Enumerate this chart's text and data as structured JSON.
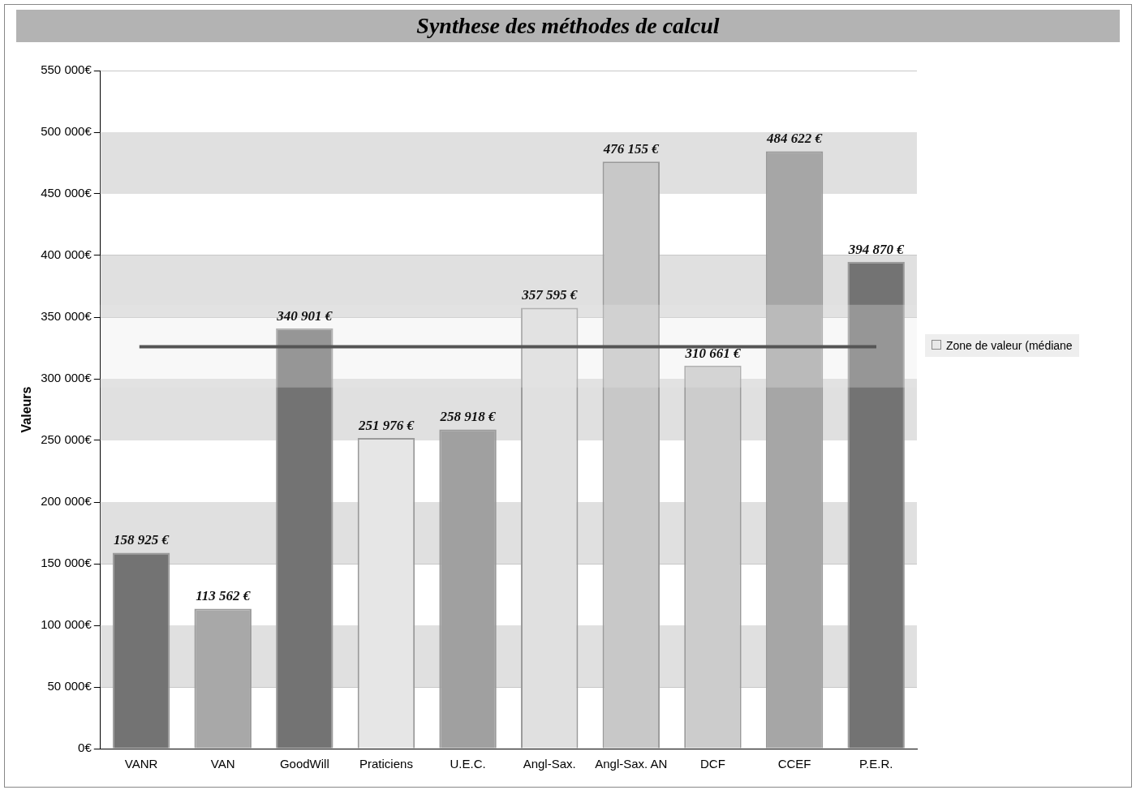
{
  "chart_data": {
    "type": "bar",
    "title": "Synthese des méthodes de calcul",
    "ylabel": "Valeurs",
    "categories": [
      "VANR",
      "VAN",
      "GoodWill",
      "Praticiens",
      "U.E.C.",
      "Angl-Sax.",
      "Angl-Sax. AN",
      "DCF",
      "CCEF",
      "P.E.R."
    ],
    "values": [
      158925,
      113562,
      340901,
      251976,
      258918,
      357595,
      476155,
      310661,
      484622,
      394870
    ],
    "value_labels": [
      "158 925 €",
      "113 562 €",
      "340 901 €",
      "251 976 €",
      "258 918 €",
      "357 595 €",
      "476 155 €",
      "310 661 €",
      "484 622 €",
      "394 870 €"
    ],
    "colors": [
      "#737373",
      "#a8a8a8",
      "#737373",
      "#e6e6e6",
      "#a0a0a0",
      "#e0e0e0",
      "#c8c8c8",
      "#cccccc",
      "#a6a6a6",
      "#737373"
    ],
    "ylim": [
      0,
      550000
    ],
    "yticks": [
      {
        "value": 0,
        "label": "0€"
      },
      {
        "value": 50000,
        "label": "50 000€"
      },
      {
        "value": 100000,
        "label": "100 000€"
      },
      {
        "value": 150000,
        "label": "150 000€"
      },
      {
        "value": 200000,
        "label": "200 000€"
      },
      {
        "value": 250000,
        "label": "250 000€"
      },
      {
        "value": 300000,
        "label": "300 000€"
      },
      {
        "value": 350000,
        "label": "350 000€"
      },
      {
        "value": 400000,
        "label": "400 000€"
      },
      {
        "value": 450000,
        "label": "450 000€"
      },
      {
        "value": 500000,
        "label": "500 000€"
      },
      {
        "value": 550000,
        "label": "550 000€"
      }
    ],
    "bands": [
      {
        "axis": "y",
        "from": 293000,
        "to": 360000,
        "label": "Zone de valeur (médiane",
        "color": "#e8e8e8"
      }
    ],
    "ref_lines": [
      {
        "axis": "y",
        "value": 326000,
        "color": "#555555"
      }
    ],
    "grid": "y",
    "legend": "right"
  }
}
